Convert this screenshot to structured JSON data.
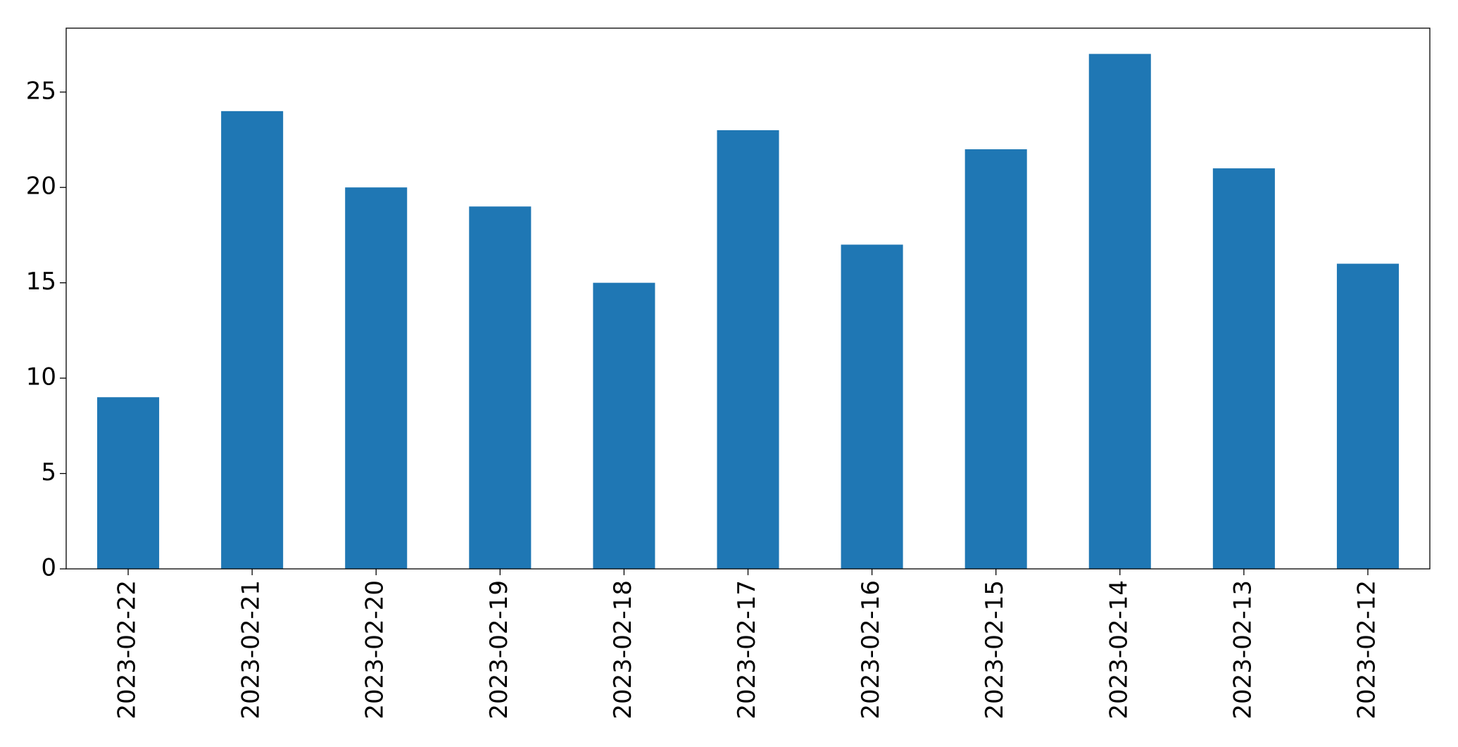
{
  "chart_data": {
    "type": "bar",
    "categories": [
      "2023-02-22",
      "2023-02-21",
      "2023-02-20",
      "2023-02-19",
      "2023-02-18",
      "2023-02-17",
      "2023-02-16",
      "2023-02-15",
      "2023-02-14",
      "2023-02-13",
      "2023-02-12"
    ],
    "values": [
      9,
      24,
      20,
      19,
      15,
      23,
      17,
      22,
      27,
      21,
      16
    ],
    "color": "#1f77b4",
    "ylim": [
      0,
      28.35
    ],
    "yticks": [
      0,
      5,
      10,
      15,
      20,
      25
    ],
    "grid": false
  }
}
